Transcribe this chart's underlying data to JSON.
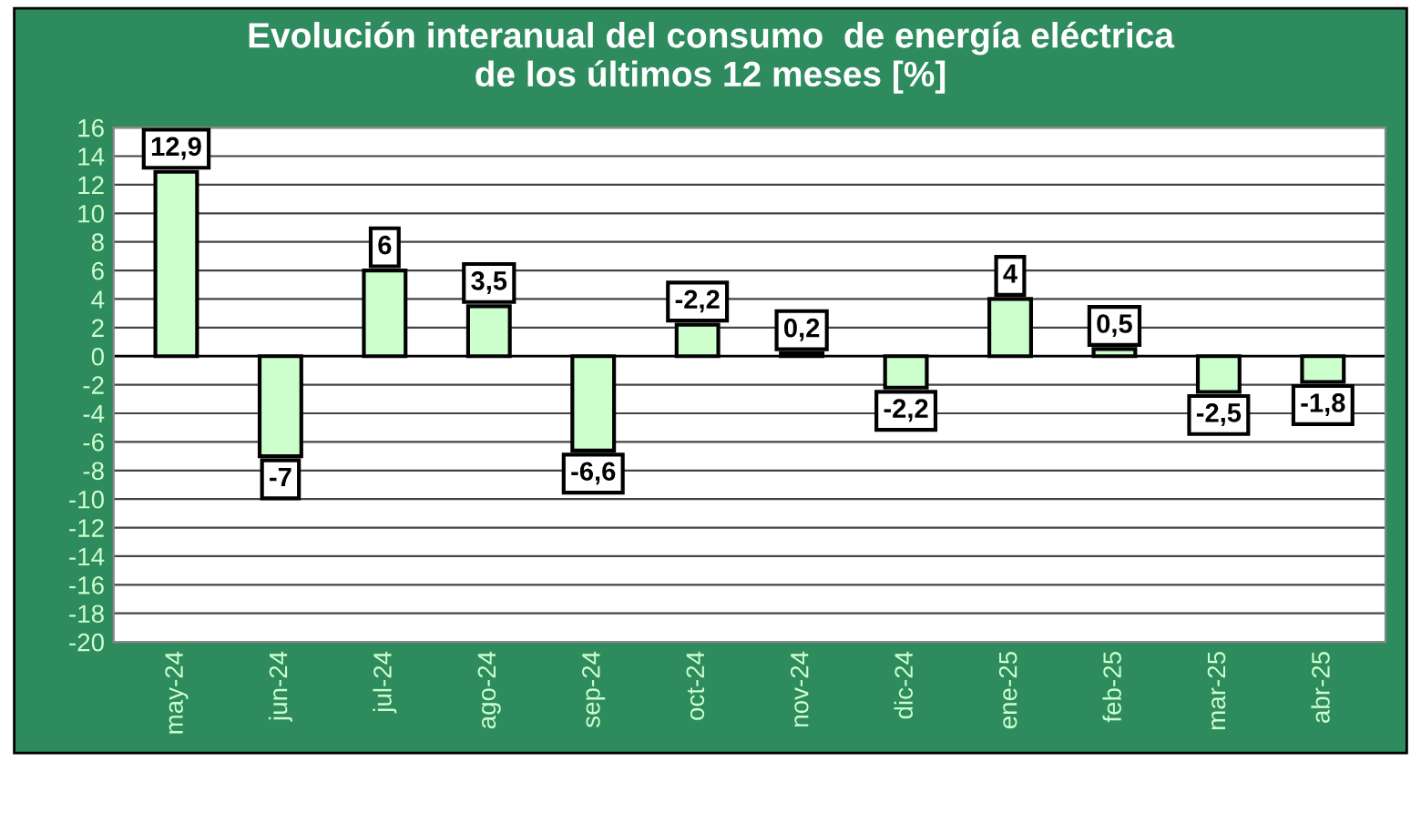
{
  "chart_data": {
    "type": "bar",
    "title": "Evolución interanual del consumo  de energía eléctrica\nde los últimos 12 meses [%]",
    "categories": [
      "may-24",
      "jun-24",
      "jul-24",
      "ago-24",
      "sep-24",
      "oct-24",
      "nov-24",
      "dic-24",
      "ene-25",
      "feb-25",
      "mar-25",
      "abr-25"
    ],
    "values": [
      12.9,
      -7,
      6,
      3.5,
      -6.6,
      2.2,
      0.2,
      -2.2,
      4,
      0.5,
      -2.5,
      -1.8
    ],
    "value_labels": [
      "12,9",
      "-7",
      "6",
      "3,5",
      "-6,6",
      null,
      "0,2",
      "-2,2",
      "4",
      "0,5",
      "-2,5",
      "-1,8"
    ],
    "color": "#ccffcc",
    "annotations": [
      {
        "text": "-2,2",
        "x": "oct-24",
        "y": 2.2
      }
    ],
    "ylim": [
      -20,
      16
    ],
    "yticks": [
      -20,
      -18,
      -16,
      -14,
      -12,
      -10,
      -8,
      -6,
      -4,
      -2,
      0,
      2,
      4,
      6,
      8,
      10,
      12,
      14,
      16
    ],
    "grid": "y"
  }
}
